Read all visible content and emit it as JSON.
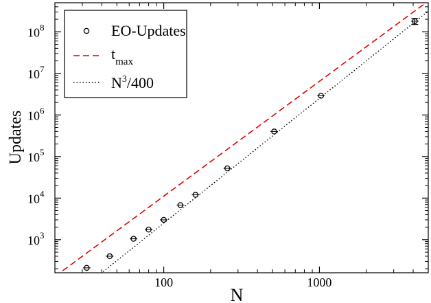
{
  "chart_data": {
    "type": "scatter",
    "xlabel": "N",
    "ylabel": "Updates",
    "x_scale": "log",
    "y_scale": "log",
    "xlim": [
      20,
      5000
    ],
    "ylim": [
      160,
      500000000
    ],
    "x_ticks": [
      {
        "value": 100,
        "label": "100"
      },
      {
        "value": 1000,
        "label": "1000"
      }
    ],
    "y_ticks": [
      {
        "value": 1000,
        "base": "10",
        "exp": "3"
      },
      {
        "value": 10000,
        "base": "10",
        "exp": "4"
      },
      {
        "value": 100000,
        "base": "10",
        "exp": "5"
      },
      {
        "value": 1000000,
        "base": "10",
        "exp": "6"
      },
      {
        "value": 10000000,
        "base": "10",
        "exp": "7"
      },
      {
        "value": 100000000,
        "base": "10",
        "exp": "8"
      }
    ],
    "legend_position": "top-left",
    "series": [
      {
        "name": "EO-Updates",
        "kind": "points",
        "marker": "circle",
        "color": "#000000",
        "x": [
          32,
          45,
          64,
          80,
          100,
          128,
          160,
          256,
          512,
          1024,
          4096
        ],
        "y": [
          210,
          400,
          1050,
          1750,
          3000,
          6800,
          12000,
          52000,
          400000,
          2900000,
          180000000
        ],
        "yerr": [
          0,
          0,
          0,
          0,
          0,
          0,
          0,
          0,
          0,
          0,
          30000000
        ]
      },
      {
        "name": "t",
        "name_subscript": "max",
        "kind": "line",
        "style": "dashed",
        "color": "#e00000",
        "x": [
          20,
          5000
        ],
        "y": [
          130,
          550000000
        ]
      },
      {
        "name": "N",
        "name_superscript": "3",
        "name_suffix": "/400",
        "kind": "line",
        "style": "dotted",
        "color": "#000000",
        "x": [
          20,
          5000
        ],
        "y": [
          20,
          312500000
        ]
      }
    ]
  }
}
